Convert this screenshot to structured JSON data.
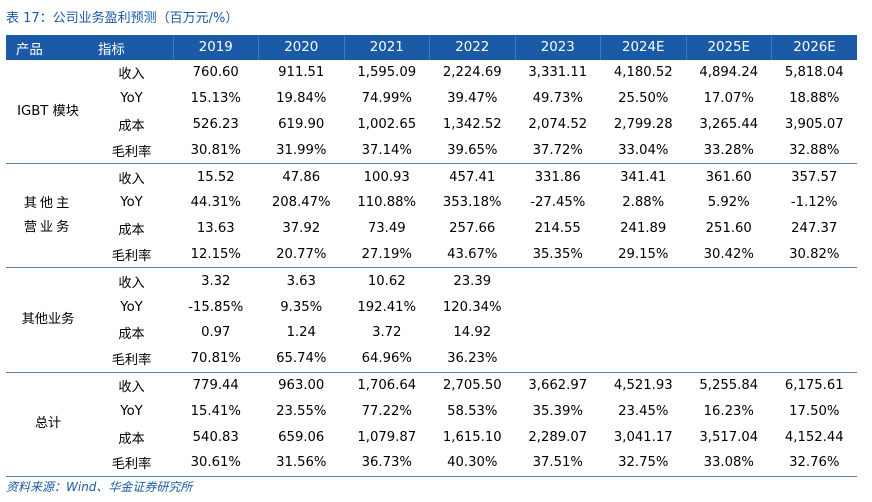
{
  "title": "表 17：公司业务盈利预测（百万元/%）",
  "headers": [
    "产品",
    "指标",
    "2019",
    "2020",
    "2021",
    "2022",
    "2023",
    "2024E",
    "2025E",
    "2026E"
  ],
  "groups": [
    {
      "product": "IGBT 模块",
      "rows": [
        {
          "metric": "收入",
          "values": [
            "760.60",
            "911.51",
            "1,595.09",
            "2,224.69",
            "3,331.11",
            "4,180.52",
            "4,894.24",
            "5,818.04"
          ]
        },
        {
          "metric": "YoY",
          "values": [
            "15.13%",
            "19.84%",
            "74.99%",
            "39.47%",
            "49.73%",
            "25.50%",
            "17.07%",
            "18.88%"
          ]
        },
        {
          "metric": "成本",
          "values": [
            "526.23",
            "619.90",
            "1,002.65",
            "1,342.52",
            "2,074.52",
            "2,799.28",
            "3,265.44",
            "3,905.07"
          ]
        },
        {
          "metric": "毛利率",
          "values": [
            "30.81%",
            "31.99%",
            "37.14%",
            "39.65%",
            "37.72%",
            "33.04%",
            "33.28%",
            "32.88%"
          ]
        }
      ]
    },
    {
      "product": "其他主营业务",
      "rows": [
        {
          "metric": "收入",
          "values": [
            "15.52",
            "47.86",
            "100.93",
            "457.41",
            "331.86",
            "341.41",
            "361.60",
            "357.57"
          ]
        },
        {
          "metric": "YoY",
          "values": [
            "44.31%",
            "208.47%",
            "110.88%",
            "353.18%",
            "-27.45%",
            "2.88%",
            "5.92%",
            "-1.12%"
          ]
        },
        {
          "metric": "成本",
          "values": [
            "13.63",
            "37.92",
            "73.49",
            "257.66",
            "214.55",
            "241.89",
            "251.60",
            "247.37"
          ]
        },
        {
          "metric": "毛利率",
          "values": [
            "12.15%",
            "20.77%",
            "27.19%",
            "43.67%",
            "35.35%",
            "29.15%",
            "30.42%",
            "30.82%"
          ]
        }
      ]
    },
    {
      "product": "其他业务",
      "rows": [
        {
          "metric": "收入",
          "values": [
            "3.32",
            "3.63",
            "10.62",
            "23.39",
            "",
            "",
            "",
            ""
          ]
        },
        {
          "metric": "YoY",
          "values": [
            "-15.85%",
            "9.35%",
            "192.41%",
            "120.34%",
            "",
            "",
            "",
            ""
          ]
        },
        {
          "metric": "成本",
          "values": [
            "0.97",
            "1.24",
            "3.72",
            "14.92",
            "",
            "",
            "",
            ""
          ]
        },
        {
          "metric": "毛利率",
          "values": [
            "70.81%",
            "65.74%",
            "64.96%",
            "36.23%",
            "",
            "",
            "",
            ""
          ]
        }
      ]
    },
    {
      "product": "总计",
      "rows": [
        {
          "metric": "收入",
          "values": [
            "779.44",
            "963.00",
            "1,706.64",
            "2,705.50",
            "3,662.97",
            "4,521.93",
            "5,255.84",
            "6,175.61"
          ]
        },
        {
          "metric": "YoY",
          "values": [
            "15.41%",
            "23.55%",
            "77.22%",
            "58.53%",
            "35.39%",
            "23.45%",
            "16.23%",
            "17.50%"
          ]
        },
        {
          "metric": "成本",
          "values": [
            "540.83",
            "659.06",
            "1,079.87",
            "1,615.10",
            "2,289.07",
            "3,041.17",
            "3,517.04",
            "4,152.44"
          ]
        },
        {
          "metric": "毛利率",
          "values": [
            "30.61%",
            "31.56%",
            "36.73%",
            "40.30%",
            "37.51%",
            "32.75%",
            "33.08%",
            "32.76%"
          ]
        }
      ]
    }
  ],
  "source": "资料来源：Wind、华金证券研究所",
  "colors": {
    "accent": "#1a5aa6",
    "rule": "#5f7fae"
  }
}
